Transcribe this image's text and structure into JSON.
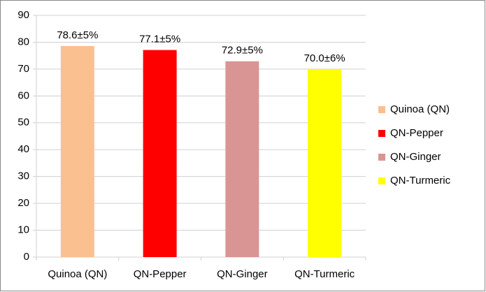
{
  "chart_data": {
    "type": "bar",
    "categories": [
      "Quinoa (QN)",
      "QN-Pepper",
      "QN-Ginger",
      "QN-Turmeric"
    ],
    "values": [
      78.6,
      77.1,
      72.9,
      70.0
    ],
    "value_labels": [
      "78.6±5%",
      "77.1±5%",
      "72.9±5%",
      "70.0±6%"
    ],
    "colors": [
      "#fac090",
      "#ff0000",
      "#d99594",
      "#ffff00"
    ],
    "ylim": [
      0,
      90
    ],
    "yticks": [
      0,
      10,
      20,
      30,
      40,
      50,
      60,
      70,
      80,
      90
    ],
    "grid": true,
    "legend": "right"
  }
}
